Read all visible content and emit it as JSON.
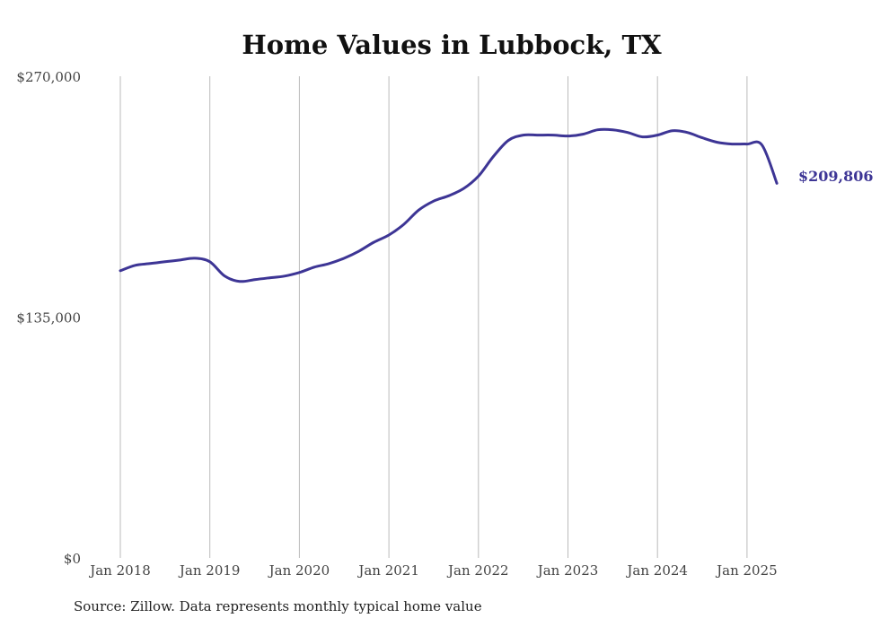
{
  "chart_data": {
    "type": "line",
    "title": "Home Values in Lubbock, TX",
    "xlabel": "",
    "ylabel": "",
    "ylim": [
      0,
      270000
    ],
    "y_ticks": [
      0,
      135000,
      270000
    ],
    "y_tick_labels": [
      "$0",
      "$135,000",
      "$270,000"
    ],
    "x_ticks": [
      "2018-01",
      "2019-01",
      "2020-01",
      "2021-01",
      "2022-01",
      "2023-01",
      "2024-01",
      "2025-01"
    ],
    "x_tick_labels": [
      "Jan 2018",
      "Jan 2019",
      "Jan 2020",
      "Jan 2021",
      "Jan 2022",
      "Jan 2023",
      "Jan 2024",
      "Jan 2025"
    ],
    "grid": "vertical",
    "legend": "none",
    "end_label": "$209,806",
    "line_color": "#3d3595",
    "series": [
      {
        "x": [
          "2018-01",
          "2018-03",
          "2018-05",
          "2018-07",
          "2018-09",
          "2018-11",
          "2019-01",
          "2019-03",
          "2019-05",
          "2019-07",
          "2019-09",
          "2019-11",
          "2020-01",
          "2020-03",
          "2020-05",
          "2020-07",
          "2020-09",
          "2020-11",
          "2021-01",
          "2021-03",
          "2021-05",
          "2021-07",
          "2021-09",
          "2021-11",
          "2022-01",
          "2022-03",
          "2022-05",
          "2022-07",
          "2022-09",
          "2022-11",
          "2023-01",
          "2023-03",
          "2023-05",
          "2023-07",
          "2023-09",
          "2023-11",
          "2024-01",
          "2024-03",
          "2024-05",
          "2024-07",
          "2024-09",
          "2024-11",
          "2025-01",
          "2025-03",
          "2025-05"
        ],
        "values": [
          161000,
          164000,
          165000,
          166000,
          167000,
          168000,
          166000,
          158000,
          155000,
          156000,
          157000,
          158000,
          160000,
          163000,
          165000,
          168000,
          172000,
          177000,
          181000,
          187000,
          195000,
          200000,
          203000,
          207000,
          214000,
          225000,
          234000,
          237000,
          237000,
          237000,
          236500,
          237500,
          240000,
          240000,
          238500,
          236000,
          237000,
          239500,
          238500,
          235500,
          233000,
          232000,
          232000,
          231500,
          210000
        ]
      }
    ]
  },
  "source_note": "Source: Zillow. Data represents monthly typical home value"
}
